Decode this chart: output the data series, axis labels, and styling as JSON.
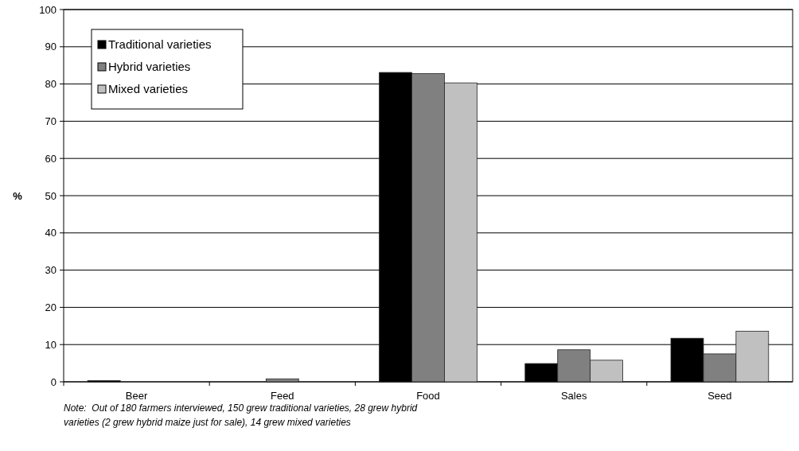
{
  "chart_data": {
    "type": "bar",
    "ylabel": "%",
    "categories": [
      "Beer",
      "Feed",
      "Food",
      "Sales",
      "Seed"
    ],
    "series": [
      {
        "name": "Traditional varieties",
        "color": "#000000",
        "values": [
          0.3,
          null,
          83.1,
          4.9,
          11.7
        ]
      },
      {
        "name": "Hybrid varieties",
        "color": "#808080",
        "values": [
          0,
          0.8,
          82.8,
          8.6,
          7.5
        ]
      },
      {
        "name": "Mixed varieties",
        "color": "#c0c0c0",
        "values": [
          0,
          0,
          80.3,
          5.8,
          13.6
        ]
      }
    ],
    "ylim": [
      0,
      100
    ],
    "yticks": [
      0,
      10,
      20,
      30,
      40,
      50,
      60,
      70,
      80,
      90,
      100
    ],
    "grid": "y",
    "legend": "top left",
    "annotations": [
      "Note:  Out of 180 farmers interviewed, 150 grew traditional varieties, 28 grew hybrid varieties (2 grew hybrid maize just for sale), 14 grew mixed varieties"
    ]
  }
}
